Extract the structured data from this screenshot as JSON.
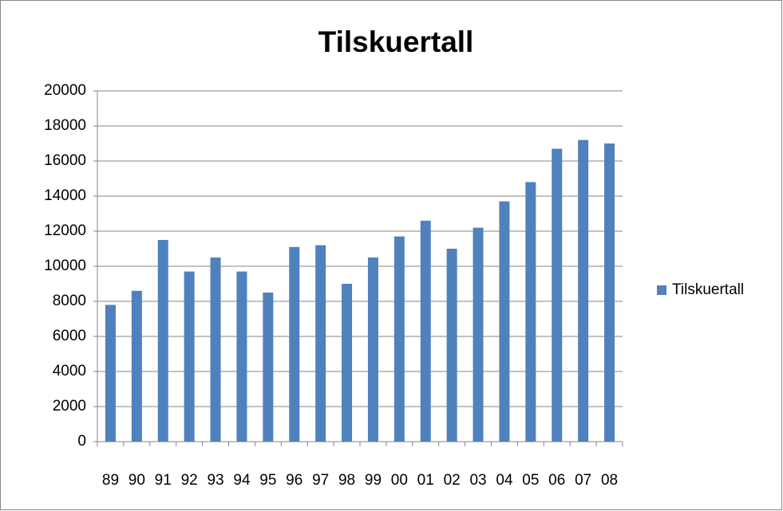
{
  "chart_data": {
    "type": "bar",
    "title": "Tilskuertall",
    "categories": [
      "89",
      "90",
      "91",
      "92",
      "93",
      "94",
      "95",
      "96",
      "97",
      "98",
      "99",
      "00",
      "01",
      "02",
      "03",
      "04",
      "05",
      "06",
      "07",
      "08"
    ],
    "series": [
      {
        "name": "Tilskuertall",
        "color": "#4f81bd",
        "values": [
          7800,
          8600,
          11500,
          9700,
          10500,
          9700,
          8500,
          11100,
          11200,
          9000,
          10500,
          11700,
          12600,
          11000,
          12200,
          13700,
          14800,
          16700,
          17200,
          17000
        ]
      }
    ],
    "ylim": [
      0,
      20000
    ],
    "yticks": [
      0,
      2000,
      4000,
      6000,
      8000,
      10000,
      12000,
      14000,
      16000,
      18000,
      20000
    ],
    "grid": true,
    "legend": "right"
  }
}
